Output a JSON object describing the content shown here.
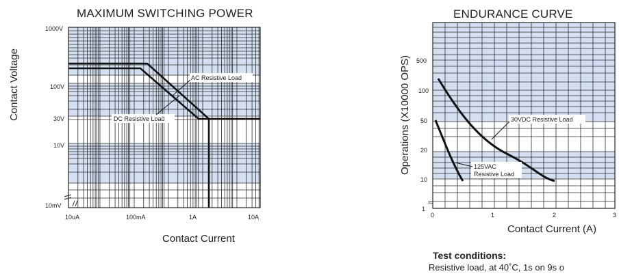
{
  "chart_data": [
    {
      "type": "line",
      "title": "MAXIMUM SWITCHING POWER",
      "xlabel": "Contact Current",
      "ylabel": "Contact Voltage",
      "x_scale": "log",
      "y_scale": "log",
      "x_ticks": [
        "10uA",
        "100mA",
        "1A",
        "10A"
      ],
      "y_ticks": [
        "1000V",
        "100V",
        "30V",
        "10V",
        "10mV"
      ],
      "grid": true,
      "annotations": [
        "AC Resistive Load",
        "DC Resistive Load"
      ],
      "series": [
        {
          "name": "AC Resistive Load",
          "points": [
            [
              "10uA",
              "250V"
            ],
            [
              "300mA",
              "250V"
            ],
            [
              "2A",
              "30V"
            ],
            [
              "2A",
              "10mV"
            ]
          ]
        },
        {
          "name": "DC Resistive Load",
          "points": [
            [
              "10uA",
              "220V"
            ],
            [
              "200mA",
              "220V"
            ],
            [
              "2A",
              "30V"
            ],
            [
              "10A",
              "30V"
            ]
          ]
        }
      ]
    },
    {
      "type": "line",
      "title": "ENDURANCE CURVE",
      "xlabel": "Contact Current (A)",
      "ylabel": "Operations (X10000 OPS)",
      "x_ticks": [
        "0",
        "1",
        "2",
        "3"
      ],
      "y_ticks": [
        "500",
        "100",
        "50",
        "20",
        "10",
        "1"
      ],
      "grid": true,
      "series": [
        {
          "name": "30VDC Resistive Load",
          "x": [
            0.1,
            0.3,
            0.6,
            1.0,
            1.4,
            1.8,
            2.0
          ],
          "y": [
            120,
            70,
            38,
            23,
            15,
            11,
            10
          ]
        },
        {
          "name": "125VAC Resistive Load",
          "x": [
            0.05,
            0.15,
            0.3,
            0.5
          ],
          "y": [
            50,
            28,
            16,
            10
          ]
        }
      ]
    }
  ],
  "notes": {
    "title": "Test conditions:",
    "text": "Resistive load, at 40˚C, 1s on 9s o"
  }
}
